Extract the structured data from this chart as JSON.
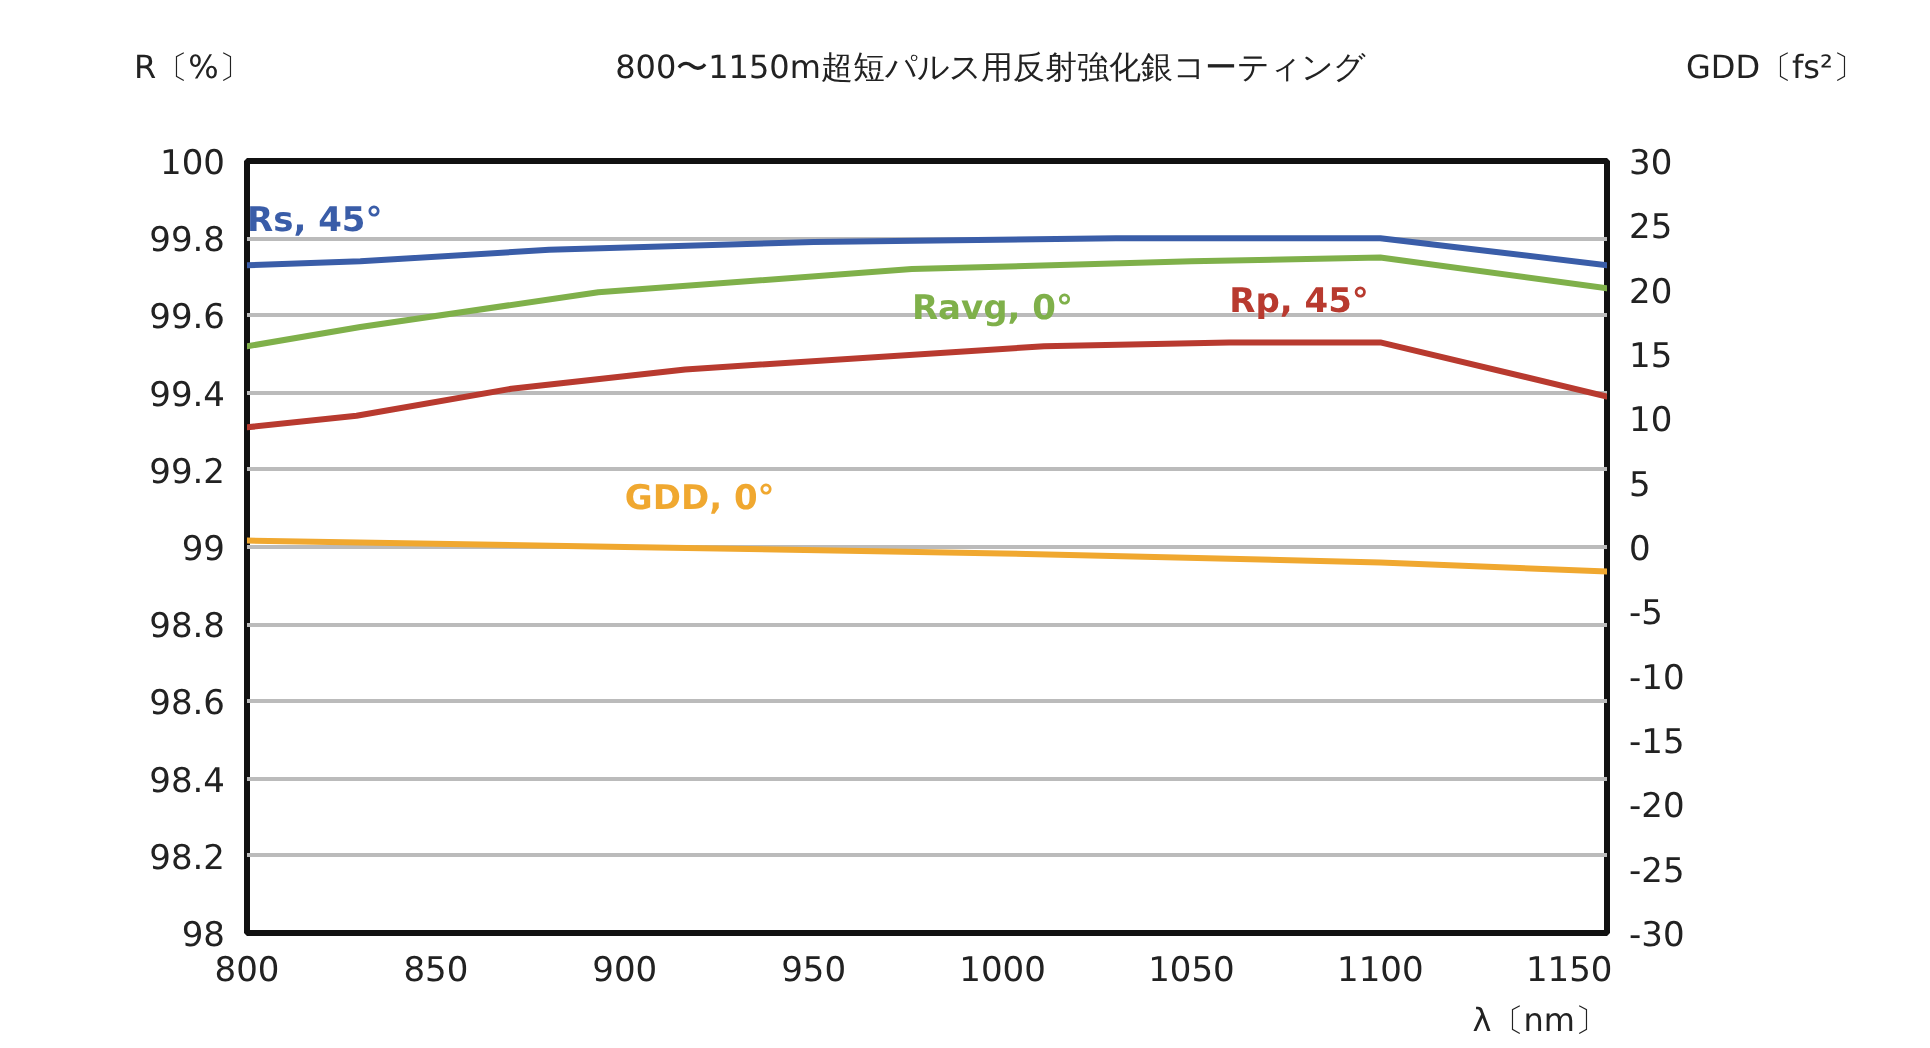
{
  "chart_data": {
    "type": "line",
    "title": "800〜1150m超短パルス用反射強化銀コーティング",
    "xlabel": "λ〔nm〕",
    "ylabel": "R〔%〕",
    "y2label": "GDD〔fs²〕",
    "xlim": [
      800,
      1160
    ],
    "xticks": [
      800,
      850,
      900,
      950,
      1000,
      1050,
      1100,
      1150
    ],
    "ylim": [
      98,
      100
    ],
    "yticks": [
      98,
      98.2,
      98.4,
      98.6,
      98.8,
      99,
      99.2,
      99.4,
      99.6,
      99.8,
      100
    ],
    "y2lim": [
      -30,
      30
    ],
    "y2ticks": [
      -30,
      -25,
      -20,
      -15,
      -10,
      -5,
      0,
      5,
      10,
      15,
      20,
      25,
      30
    ],
    "grid": "y",
    "legend": false,
    "series": [
      {
        "name": "Rs, 45°",
        "color": "#3a5da8",
        "x": [
          800,
          830,
          880,
          950,
          1030,
          1100,
          1160
        ],
        "values": [
          99.73,
          99.74,
          99.77,
          99.79,
          99.8,
          99.8,
          99.73
        ]
      },
      {
        "name": "Ravg, 0°",
        "color": "#7fb04a",
        "x": [
          800,
          830,
          893,
          976,
          1050,
          1100,
          1160
        ],
        "values": [
          99.52,
          99.57,
          99.66,
          99.72,
          99.74,
          99.75,
          99.67
        ]
      },
      {
        "name": "Rp, 45°",
        "color": "#b83a2f",
        "x": [
          800,
          829,
          870,
          916,
          1011,
          1060,
          1100,
          1160
        ],
        "values": [
          99.31,
          99.34,
          99.41,
          99.46,
          99.52,
          99.53,
          99.53,
          99.39
        ]
      },
      {
        "name": "GDD, 0°",
        "color": "#f0a830",
        "axis": "y2",
        "x": [
          800,
          900,
          1000,
          1100,
          1160
        ],
        "values": [
          0.5,
          0,
          -0.5,
          -1.2,
          -1.9
        ]
      }
    ]
  }
}
